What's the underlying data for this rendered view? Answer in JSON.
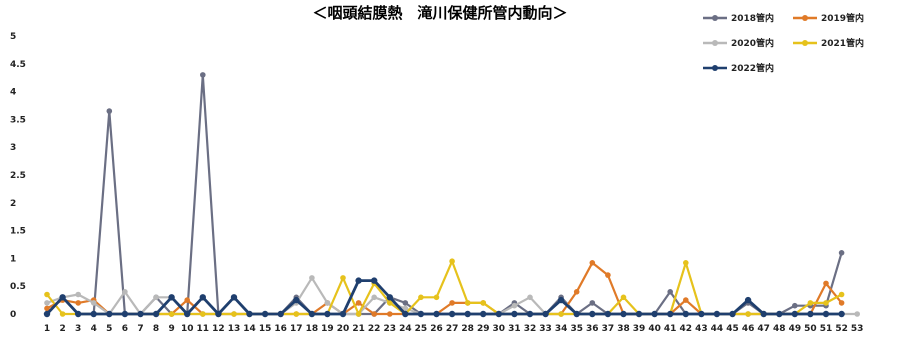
{
  "chart_data": {
    "type": "line",
    "title": "＜咽頭結膜熱　滝川保健所管内動向＞",
    "xlabel": "",
    "ylabel": "",
    "ylim": [
      0,
      5
    ],
    "y_ticks": [
      "0",
      "0.5",
      "1",
      "1.5",
      "2",
      "2.5",
      "3",
      "3.5",
      "4",
      "4.5",
      "5"
    ],
    "x": [
      1,
      2,
      3,
      4,
      5,
      6,
      7,
      8,
      9,
      10,
      11,
      12,
      13,
      14,
      15,
      16,
      17,
      18,
      19,
      20,
      21,
      22,
      23,
      24,
      25,
      26,
      27,
      28,
      29,
      30,
      31,
      32,
      33,
      34,
      35,
      36,
      37,
      38,
      39,
      40,
      41,
      42,
      43,
      44,
      45,
      46,
      47,
      48,
      49,
      50,
      51,
      52,
      53
    ],
    "x_tick_labels": [
      "1",
      "2",
      "3",
      "4",
      "5",
      "6",
      "7",
      "8",
      "9",
      "10",
      "11",
      "12",
      "13",
      "14",
      "15",
      "16",
      "17",
      "18",
      "19",
      "20",
      "21",
      "22",
      "23",
      "24",
      "25",
      "26",
      "27",
      "28",
      "29",
      "30",
      "31",
      "32",
      "33",
      "34",
      "35",
      "36",
      "37",
      "38",
      "39",
      "40",
      "41",
      "42",
      "43",
      "44",
      "45",
      "46",
      "47",
      "48",
      "49",
      "50",
      "51",
      "52",
      "53"
    ],
    "grid": false,
    "legend_position": "top-right",
    "series": [
      {
        "name": "2018管内",
        "color": "#6b6f84",
        "values": [
          0,
          0.3,
          0,
          0,
          3.65,
          0,
          0,
          0.3,
          0,
          0,
          4.3,
          0,
          0.3,
          0,
          0,
          0,
          0.3,
          0,
          0,
          0,
          0,
          0,
          0.3,
          0.2,
          0,
          0,
          0,
          0,
          0,
          0,
          0.2,
          0,
          0,
          0.3,
          0,
          0.2,
          0,
          0,
          0,
          0,
          0.4,
          0,
          0,
          0,
          0,
          0.2,
          0,
          0,
          0.15,
          0.15,
          0.15,
          1.1,
          null
        ]
      },
      {
        "name": "2019管内",
        "color": "#e07a28",
        "values": [
          0.1,
          0.25,
          0.2,
          0.25,
          0,
          0,
          0,
          0,
          0,
          0.25,
          0,
          0,
          0,
          0,
          0,
          0,
          0,
          0,
          0.2,
          0,
          0.2,
          0,
          0,
          0,
          0,
          0,
          0.2,
          0.2,
          0.2,
          0,
          0,
          0,
          0,
          0,
          0.4,
          0.92,
          0.7,
          0,
          0,
          0,
          0,
          0.25,
          0,
          0,
          0,
          0,
          0,
          0,
          0,
          0,
          0.55,
          0.2,
          null
        ]
      },
      {
        "name": "2020管内",
        "color": "#b9b9b9",
        "values": [
          0.2,
          0.3,
          0.35,
          0.2,
          0,
          0.4,
          0,
          0.3,
          0.3,
          0,
          0,
          0,
          0,
          0,
          0,
          0,
          0.2,
          0.65,
          0.2,
          0,
          0,
          0.3,
          0.2,
          0.1,
          0,
          0,
          0,
          0,
          0,
          0,
          0.15,
          0.3,
          0,
          0,
          0,
          0,
          0,
          0,
          0,
          0,
          0,
          0,
          0,
          0,
          0,
          0,
          0,
          0,
          0,
          0,
          0,
          0,
          0
        ]
      },
      {
        "name": "2021管内",
        "color": "#e6c21c",
        "values": [
          0.35,
          0,
          0,
          0,
          0,
          0,
          0,
          0,
          0,
          0,
          0,
          0,
          0,
          0,
          0,
          0,
          0,
          0,
          0,
          0.65,
          0,
          0.55,
          0.2,
          0,
          0.3,
          0.3,
          0.95,
          0.2,
          0.2,
          0,
          0,
          0,
          0,
          0,
          0,
          0,
          0,
          0.3,
          0,
          0,
          0,
          0.92,
          0,
          0,
          0,
          0,
          0,
          0,
          0,
          0.2,
          0.2,
          0.35,
          null
        ]
      },
      {
        "name": "2022管内",
        "color": "#1f3f6e",
        "values": [
          0,
          0.3,
          0,
          0,
          0,
          0,
          0,
          0,
          0.3,
          0,
          0.3,
          0,
          0.3,
          0,
          0,
          0,
          0.25,
          0,
          0,
          0,
          0.6,
          0.6,
          0.3,
          0,
          0,
          0,
          0,
          0,
          0,
          0,
          0,
          0,
          0,
          0.25,
          0,
          0,
          0,
          0,
          0,
          0,
          0,
          0,
          0,
          0,
          0,
          0.25,
          0,
          0,
          0,
          0,
          0,
          0,
          null
        ]
      }
    ]
  }
}
